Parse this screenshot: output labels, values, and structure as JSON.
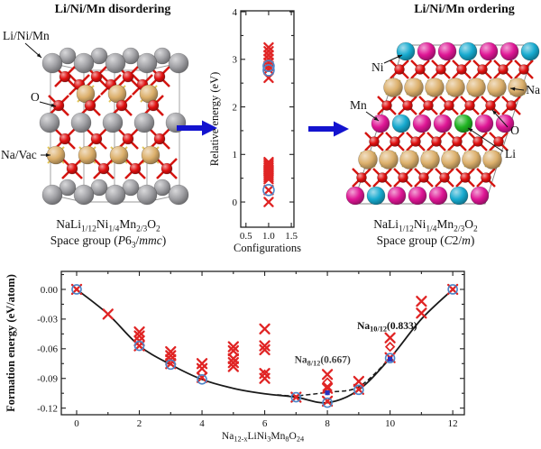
{
  "panels": {
    "left": {
      "title": "Li/Ni/Mn disordering",
      "labels": {
        "metal": "Li/Ni/Mn",
        "oxygen": "O",
        "sodium": "Na/Vac"
      },
      "formula": [
        [
          "NaLi"
        ],
        [
          "1/12",
          "sub"
        ],
        [
          "Ni"
        ],
        [
          "1/4",
          "sub"
        ],
        [
          "Mn"
        ],
        [
          "2/3",
          "sub"
        ],
        [
          "O"
        ],
        [
          "2",
          "sub"
        ]
      ],
      "space_group": [
        [
          "Space group ("
        ],
        [
          "P",
          "i"
        ],
        [
          "6"
        ],
        [
          "3",
          "sub"
        ],
        [
          "/"
        ],
        [
          "mmc",
          "i"
        ],
        [
          ")"
        ]
      ]
    },
    "right": {
      "title": "Li/Ni/Mn ordering",
      "labels": {
        "ni": "Ni",
        "mn": "Mn",
        "na": "Na",
        "o": "O",
        "li": "Li"
      },
      "formula": [
        [
          "NaLi"
        ],
        [
          "1/12",
          "sub"
        ],
        [
          "Ni"
        ],
        [
          "1/4",
          "sub"
        ],
        [
          "Mn"
        ],
        [
          "2/3",
          "sub"
        ],
        [
          "O"
        ],
        [
          "2",
          "sub"
        ]
      ],
      "space_group": [
        [
          "Space group ("
        ],
        [
          "C",
          "i"
        ],
        [
          "2/"
        ],
        [
          "m",
          "i"
        ],
        [
          ")"
        ]
      ]
    }
  },
  "atom_colors": {
    "metal_gray": "#a0a0a4",
    "oxygen_red": "#e01010",
    "sodium_tan": "#dcb06c",
    "nickel_cyan": "#17aacf",
    "manganese_magenta": "#df1695",
    "lithium_green": "#1fb422"
  },
  "bond_colors": {
    "oxygen": "#d51510",
    "sodium": "#e2c55a"
  },
  "arrow_color": "#1313cf",
  "marker_colors": {
    "cross": "#e02424",
    "circle": "#4d86c8",
    "diamond": "#e02424",
    "square": "#2733c0",
    "line": "#1a1a1a"
  },
  "chart_data": [
    {
      "name": "relative-energy-vs-configurations",
      "type": "scatter",
      "xlabel": "Configurations",
      "ylabel": "Relative energy (eV)",
      "xlim": [
        0.385,
        1.558
      ],
      "ylim": [
        -0.53,
        4.02
      ],
      "xticks": [
        0.5,
        1.0,
        1.5
      ],
      "xticklabels": [
        "0.5",
        "1.0",
        "1.5"
      ],
      "yticks": [
        0,
        1,
        2,
        3,
        4
      ],
      "yticklabels": [
        "0",
        "1",
        "2",
        "3",
        "4"
      ],
      "yminor": [
        0.5,
        1.5,
        2.5,
        3.5
      ],
      "xminor": [],
      "markers": [
        {
          "name": "configuration-energies",
          "type": "cross",
          "x": 1.0,
          "values": [
            3.25,
            3.17,
            3.09,
            3.01,
            2.93,
            2.86,
            2.79,
            2.61,
            0.84,
            0.8,
            0.76,
            0.72,
            0.68,
            0.64,
            0.6,
            0.56,
            0.52,
            0.48,
            0.25,
            0.0
          ]
        },
        {
          "name": "selected-configurations",
          "type": "circle",
          "x": 1.0,
          "values": [
            2.86,
            2.77,
            0.25
          ]
        }
      ],
      "lines": [],
      "annotations": []
    },
    {
      "name": "formation-energy-convex-hull",
      "type": "scatter",
      "xlabel_formula": [
        [
          "Na"
        ],
        [
          "12-x",
          "sub"
        ],
        [
          "LiNi"
        ],
        [
          "3",
          "sub"
        ],
        [
          "Mn"
        ],
        [
          "8",
          "sub"
        ],
        [
          "O"
        ],
        [
          "24",
          "sub"
        ]
      ],
      "ylabel": "Formation energy (eV/atom)",
      "xlim": [
        -0.489,
        12.37
      ],
      "ylim": [
        -0.1267,
        0.0182
      ],
      "xticks": [
        0,
        2,
        4,
        6,
        8,
        10,
        12
      ],
      "xticklabels": [
        "0",
        "2",
        "4",
        "6",
        "8",
        "10",
        "12"
      ],
      "yticks": [
        0.0,
        -0.03,
        -0.06,
        -0.09,
        -0.12
      ],
      "yticklabels": [
        "0.00",
        "-0.03",
        "-0.06",
        "-0.09",
        "-0.12"
      ],
      "xminor": [
        1,
        3,
        5,
        7,
        9,
        11
      ],
      "yminor": [
        0.015,
        -0.015,
        -0.045,
        -0.075,
        -0.105
      ],
      "markers": [
        {
          "name": "sampled-configurations",
          "type": "cross",
          "points": [
            [
              0,
              0
            ],
            [
              1,
              -0.025
            ],
            [
              2,
              -0.043
            ],
            [
              2,
              -0.047
            ],
            [
              2,
              -0.052
            ],
            [
              2,
              -0.057
            ],
            [
              3,
              -0.063
            ],
            [
              3,
              -0.067
            ],
            [
              3,
              -0.071
            ],
            [
              3,
              -0.075
            ],
            [
              4,
              -0.075
            ],
            [
              4,
              -0.08
            ],
            [
              4,
              -0.089
            ],
            [
              5,
              -0.058
            ],
            [
              5,
              -0.062
            ],
            [
              5,
              -0.07
            ],
            [
              5,
              -0.074
            ],
            [
              5,
              -0.078
            ],
            [
              6,
              -0.04
            ],
            [
              6,
              -0.057
            ],
            [
              6,
              -0.061
            ],
            [
              6,
              -0.085
            ],
            [
              6,
              -0.09
            ],
            [
              7,
              -0.109
            ],
            [
              8,
              -0.086
            ],
            [
              8,
              -0.1
            ],
            [
              8,
              -0.113
            ],
            [
              9,
              -0.093
            ],
            [
              9,
              -0.101
            ],
            [
              10,
              -0.049
            ],
            [
              10,
              -0.069
            ],
            [
              11,
              -0.012
            ],
            [
              11,
              -0.024
            ],
            [
              12,
              0
            ]
          ]
        },
        {
          "name": "hull-ground-states",
          "type": "circle",
          "points": [
            [
              0,
              0
            ],
            [
              2,
              -0.057
            ],
            [
              3,
              -0.076
            ],
            [
              4,
              -0.091
            ],
            [
              7,
              -0.109
            ],
            [
              8,
              -0.1145
            ],
            [
              9,
              -0.1015
            ],
            [
              10,
              -0.0695
            ],
            [
              12,
              0
            ]
          ]
        },
        {
          "name": "metastable-diamonds",
          "type": "diamond",
          "points": [
            [
              5,
              -0.066
            ],
            [
              6,
              -0.086
            ],
            [
              8,
              -0.094
            ],
            [
              8,
              -0.102
            ],
            [
              10,
              -0.058
            ]
          ]
        },
        {
          "name": "dashed-hull-points",
          "type": "square",
          "points": [
            [
              8,
              -0.1045
            ],
            [
              10,
              -0.0705
            ]
          ]
        }
      ],
      "lines": [
        {
          "name": "convex-hull-line",
          "style": "solid",
          "smooth": true,
          "points": [
            [
              0,
              0
            ],
            [
              1,
              -0.025
            ],
            [
              2,
              -0.057
            ],
            [
              3,
              -0.076
            ],
            [
              4,
              -0.091
            ],
            [
              5,
              -0.1
            ],
            [
              6,
              -0.1055
            ],
            [
              7,
              -0.109
            ],
            [
              8,
              -0.1145
            ],
            [
              9,
              -0.1015
            ],
            [
              10,
              -0.0695
            ],
            [
              11,
              -0.03
            ],
            [
              12,
              0
            ]
          ]
        },
        {
          "name": "alternative-hull-dashed",
          "style": "dashed",
          "smooth": true,
          "points": [
            [
              6.4,
              -0.1065
            ],
            [
              7,
              -0.1075
            ],
            [
              8,
              -0.104
            ],
            [
              9,
              -0.0985
            ],
            [
              10,
              -0.0695
            ]
          ]
        }
      ],
      "annotations": [
        {
          "name": "na-8-12-annotation",
          "formula": [
            [
              "Na"
            ],
            [
              "8/12",
              "sub"
            ],
            [
              "(0.667)"
            ]
          ],
          "x": 6.95,
          "y": -0.0745,
          "color": "#3d3d3d"
        },
        {
          "name": "na-10-12-annotation",
          "formula": [
            [
              "Na"
            ],
            [
              "10/12",
              "sub"
            ],
            [
              "(0.833)"
            ]
          ],
          "x": 8.95,
          "y": -0.04,
          "color": "#101010"
        }
      ]
    }
  ]
}
